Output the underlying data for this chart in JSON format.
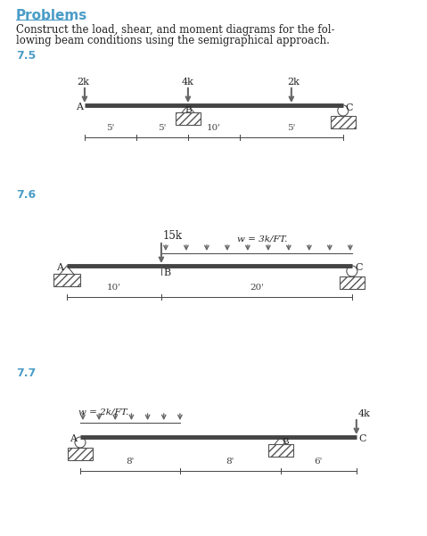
{
  "title_text": "Problems",
  "intro_text": "Construct the load, shear, and moment diagrams for the fol-\nlowing beam conditions using the semigraphical approach.",
  "title_color": "#4A9CC7",
  "problem_label_color": "#4A9CC7",
  "beam_color": "#555555",
  "hatching_color": "#888888",
  "arrow_color": "#888888",
  "text_color": "#222222",
  "bg_color": "#ffffff",
  "problems": [
    "7.5",
    "7.6",
    "7.7"
  ]
}
